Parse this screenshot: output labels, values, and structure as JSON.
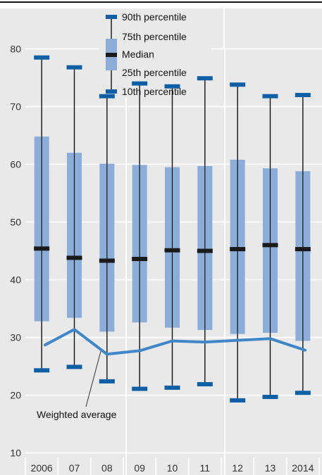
{
  "chart_data": {
    "type": "box",
    "categories": [
      "2006",
      "07",
      "08",
      "09",
      "10",
      "11",
      "12",
      "13",
      "2014"
    ],
    "ylim": [
      8,
      87
    ],
    "yticks": [
      10,
      20,
      30,
      40,
      50,
      60,
      70,
      80
    ],
    "p90": [
      78.5,
      76.8,
      71.8,
      74.0,
      73.5,
      74.9,
      73.8,
      71.8,
      72.0
    ],
    "p75": [
      64.8,
      62.0,
      60.1,
      59.9,
      59.5,
      59.7,
      60.8,
      59.3,
      58.8
    ],
    "median": [
      45.4,
      43.8,
      43.3,
      43.6,
      45.1,
      45.0,
      45.3,
      46.0,
      45.3
    ],
    "p25": [
      32.8,
      33.4,
      31.0,
      32.6,
      31.7,
      31.3,
      30.6,
      30.8,
      29.4
    ],
    "p10": [
      24.3,
      24.9,
      22.4,
      21.1,
      21.3,
      21.9,
      19.1,
      19.7,
      20.4
    ],
    "weighted_average": [
      28.7,
      31.4,
      27.1,
      27.7,
      29.4,
      29.2,
      29.5,
      29.8,
      27.8
    ],
    "legend": {
      "p90": "90th percentile",
      "p75": "75th percentile",
      "median": "Median",
      "p25": "25th percentile",
      "p10": "10th percentile"
    },
    "annotation": "Weighted average",
    "colors": {
      "background": "#e9e9ea",
      "box": "#8cadd8",
      "cap": "#0e5fa6",
      "median": "#1a1a1a",
      "whisker": "#111111",
      "line": "#3f87c8",
      "grid": "#ffffff"
    }
  }
}
